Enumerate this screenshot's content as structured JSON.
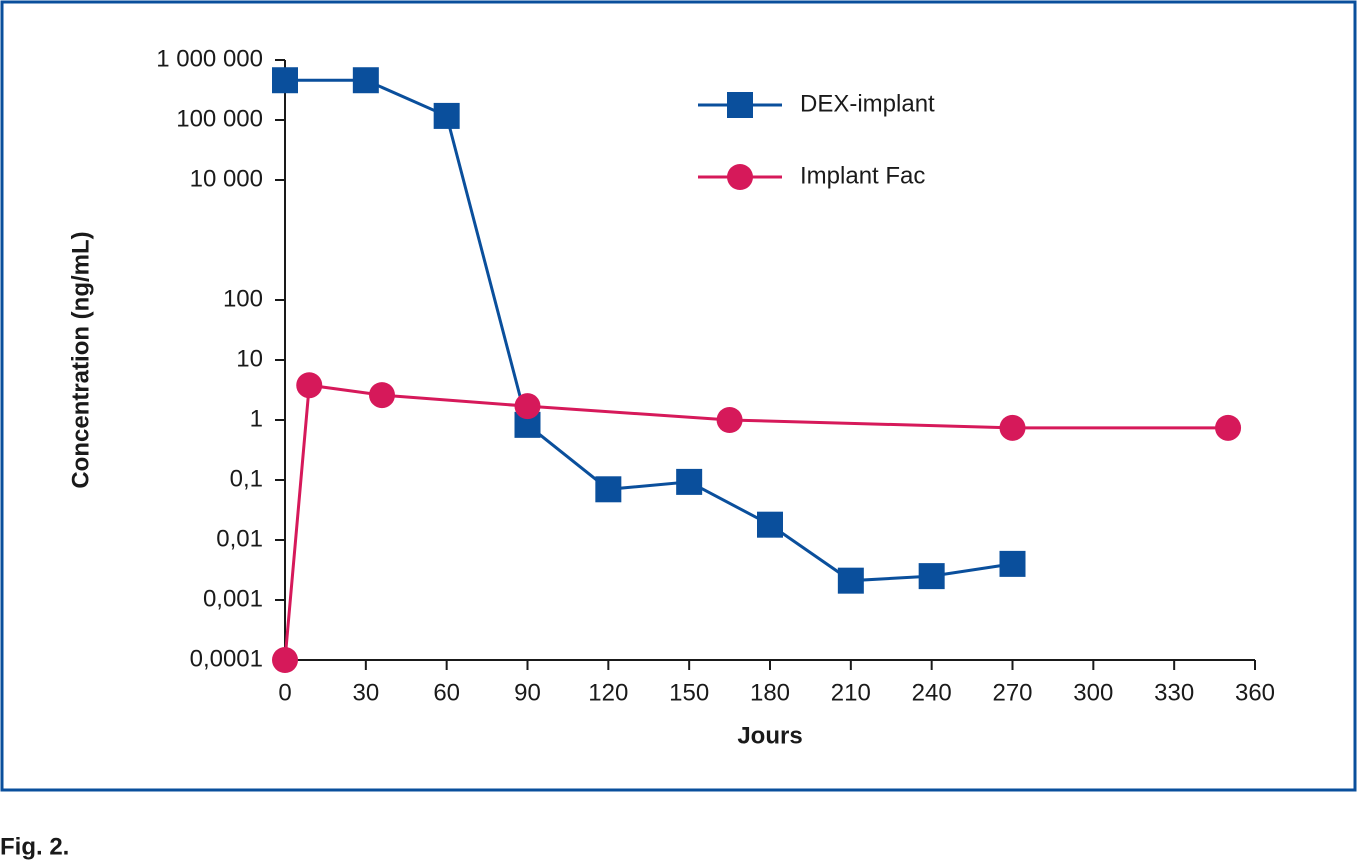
{
  "chart_data": {
    "type": "line",
    "caption": "Fig. 2.",
    "xlabel": "Jours",
    "ylabel": "Concentration (ng/mL)",
    "yscale": "log",
    "legend": "upper right",
    "xlim": [
      0,
      360
    ],
    "xticks": [
      0,
      30,
      60,
      90,
      120,
      150,
      180,
      210,
      240,
      270,
      300,
      330,
      360
    ],
    "ylim": [
      0.0001,
      1000000
    ],
    "yticks": [
      {
        "value": 1000000,
        "label": "1 000 000"
      },
      {
        "value": 100000,
        "label": "100 000"
      },
      {
        "value": 10000,
        "label": "10 000"
      },
      100,
      10,
      1,
      {
        "value": 0.1,
        "label": "0,1"
      },
      {
        "value": 0.01,
        "label": "0,01"
      },
      {
        "value": 0.001,
        "label": "0,001"
      },
      {
        "value": 0.0001,
        "label": "0,0001"
      }
    ],
    "series": [
      {
        "name": "DEX-implant",
        "color": "#0a4f9c",
        "marker": "square",
        "x": [
          0,
          30,
          60,
          90,
          120,
          150,
          180,
          210,
          240,
          270
        ],
        "values": [
          460000,
          460000,
          117000,
          0.83,
          0.07,
          0.093,
          0.018,
          0.0021,
          0.0025,
          0.004
        ]
      },
      {
        "name": "Implant Fac",
        "color": "#d6195a",
        "marker": "circle",
        "x": [
          0,
          9,
          36,
          90,
          165,
          270,
          350
        ],
        "values": [
          0.0001,
          3.8,
          2.6,
          1.7,
          1.0,
          0.74,
          0.74
        ]
      }
    ]
  }
}
